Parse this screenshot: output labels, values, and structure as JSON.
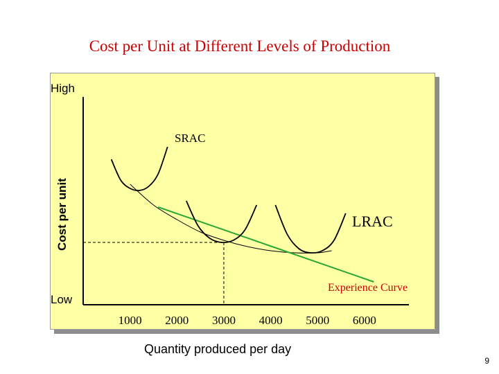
{
  "slide": {
    "title": "Cost per Unit at Different Levels of Production",
    "page_number": "9"
  },
  "chart_data": {
    "type": "line",
    "title": "Cost per Unit at Different Levels of Production",
    "xlabel": "Quantity produced per day",
    "ylabel": "Cost per unit",
    "x_ticks": [
      1000,
      2000,
      3000,
      4000,
      5000,
      6000
    ],
    "y_tick_labels": {
      "high": "High",
      "low": "Low"
    },
    "xlim": [
      0,
      6800
    ],
    "ylim": [
      0,
      100
    ],
    "grid": false,
    "series": [
      {
        "name": "LRAC",
        "color": "#000000",
        "x": [
          1000,
          1500,
          2000,
          2500,
          3000,
          3500,
          4000,
          4500,
          5000,
          5300
        ],
        "y": [
          58,
          48,
          41,
          35,
          31,
          28,
          26,
          25,
          25,
          26
        ]
      },
      {
        "name": "Experience Curve",
        "color": "#2aa832",
        "x": [
          1600,
          6200
        ],
        "y": [
          47,
          11
        ]
      },
      {
        "name": "SRAC",
        "color": "#000000",
        "x": [
          600,
          800,
          1000,
          1200,
          1400,
          1600,
          1800
        ],
        "y": [
          70,
          60,
          56,
          55,
          57,
          63,
          76
        ]
      },
      {
        "name": "",
        "color": "#000000",
        "x": [
          2200,
          2450,
          2700,
          2950,
          3200,
          3450,
          3700
        ],
        "y": [
          50,
          38,
          32,
          30,
          31,
          36,
          48
        ]
      },
      {
        "name": "",
        "color": "#000000",
        "x": [
          4100,
          4350,
          4600,
          4850,
          5100,
          5350,
          5600
        ],
        "y": [
          48,
          34,
          27,
          25,
          26,
          31,
          44
        ]
      }
    ],
    "reference_point": {
      "x": 3000,
      "y": 30,
      "style": "dashed"
    },
    "annotations": [
      {
        "text": "SRAC",
        "color": "#000000"
      },
      {
        "text": "LRAC",
        "color": "#000000"
      },
      {
        "text": "Experience Curve",
        "color": "#cc0000"
      }
    ]
  }
}
